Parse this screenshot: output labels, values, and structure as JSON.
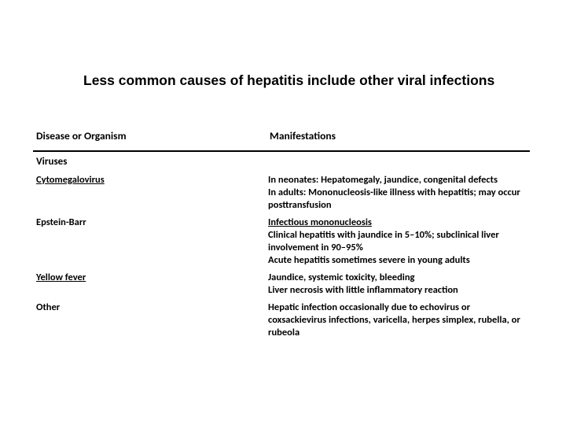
{
  "title": "Less common causes of hepatitis include other viral infections",
  "headers": {
    "col1": "Disease or Organism",
    "col2": "Manifestations"
  },
  "section": "Viruses",
  "rows": [
    {
      "disease": "Cytomegalovirus",
      "disease_link": true,
      "manifest": "In neonates: Hepatomegaly, jaundice, congenital defects\nIn adults: Mononucleosis-like illness with hepatitis; may occur posttransfusion"
    },
    {
      "disease": "Epstein-Barr",
      "disease_link": false,
      "manifest_link_prefix": "Infectious mononucleosis",
      "manifest_rest": "Clinical hepatitis with jaundice in 5–10%; subclinical liver involvement in 90–95%\nAcute hepatitis sometimes severe in young adults"
    },
    {
      "disease": "Yellow fever",
      "disease_link": true,
      "manifest": "Jaundice, systemic toxicity, bleeding\nLiver necrosis with little inflammatory reaction"
    },
    {
      "disease": "Other",
      "disease_link": false,
      "manifest": "Hepatic infection occasionally due to echovirus or coxsackievirus infections, varicella, herpes simplex, rubella, or rubeola"
    }
  ]
}
